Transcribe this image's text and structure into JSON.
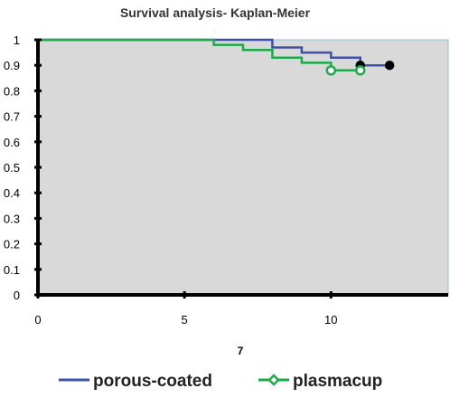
{
  "chart_data": {
    "type": "line",
    "title": "Survival analysis- Kaplan-Meier",
    "xlabel": "7",
    "ylabel": "",
    "xlim": [
      0,
      14
    ],
    "ylim": [
      0,
      1
    ],
    "x_ticks": [
      0,
      5,
      10
    ],
    "y_ticks": [
      0,
      0.1,
      0.2,
      0.3,
      0.4,
      0.5,
      0.6,
      0.7,
      0.8,
      0.9,
      1
    ],
    "step": true,
    "grid": false,
    "legend_position": "bottom",
    "plot_background": "#d9d9d9",
    "series": [
      {
        "name": "porous-coated",
        "color": "#3f51a8",
        "marker_color": "#000000",
        "points": [
          [
            0,
            1.0
          ],
          [
            8,
            1.0
          ],
          [
            8,
            0.97
          ],
          [
            9,
            0.97
          ],
          [
            9,
            0.95
          ],
          [
            10,
            0.95
          ],
          [
            10,
            0.93
          ],
          [
            11,
            0.93
          ],
          [
            11,
            0.9
          ],
          [
            12,
            0.9
          ]
        ],
        "censored": [
          [
            11,
            0.9
          ],
          [
            12,
            0.9
          ]
        ]
      },
      {
        "name": "plasmacup",
        "color": "#1faa4a",
        "marker_color": "#1faa4a",
        "points": [
          [
            0,
            1.0
          ],
          [
            6,
            1.0
          ],
          [
            6,
            0.98
          ],
          [
            7,
            0.98
          ],
          [
            7,
            0.96
          ],
          [
            8,
            0.96
          ],
          [
            8,
            0.93
          ],
          [
            9,
            0.93
          ],
          [
            9,
            0.91
          ],
          [
            10,
            0.91
          ],
          [
            10,
            0.88
          ],
          [
            11,
            0.88
          ]
        ],
        "censored": [
          [
            10,
            0.88
          ],
          [
            11,
            0.88
          ]
        ]
      }
    ]
  }
}
